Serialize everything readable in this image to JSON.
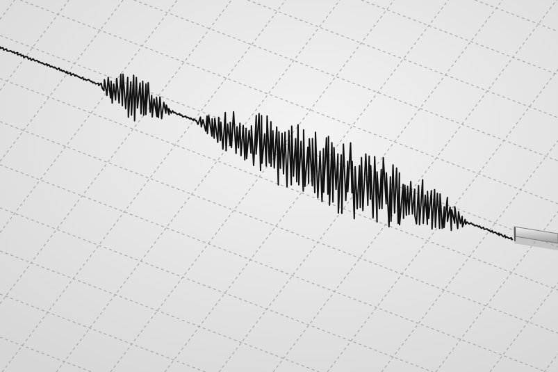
{
  "colors": {
    "paper": "#ececec",
    "paper_shadow": "#d4d4d4",
    "grid": "#9a9a9a",
    "trace": "#111111",
    "stylus": "#bdbdbd"
  },
  "icons": {
    "stylus": "seismograph-stylus-icon"
  }
}
